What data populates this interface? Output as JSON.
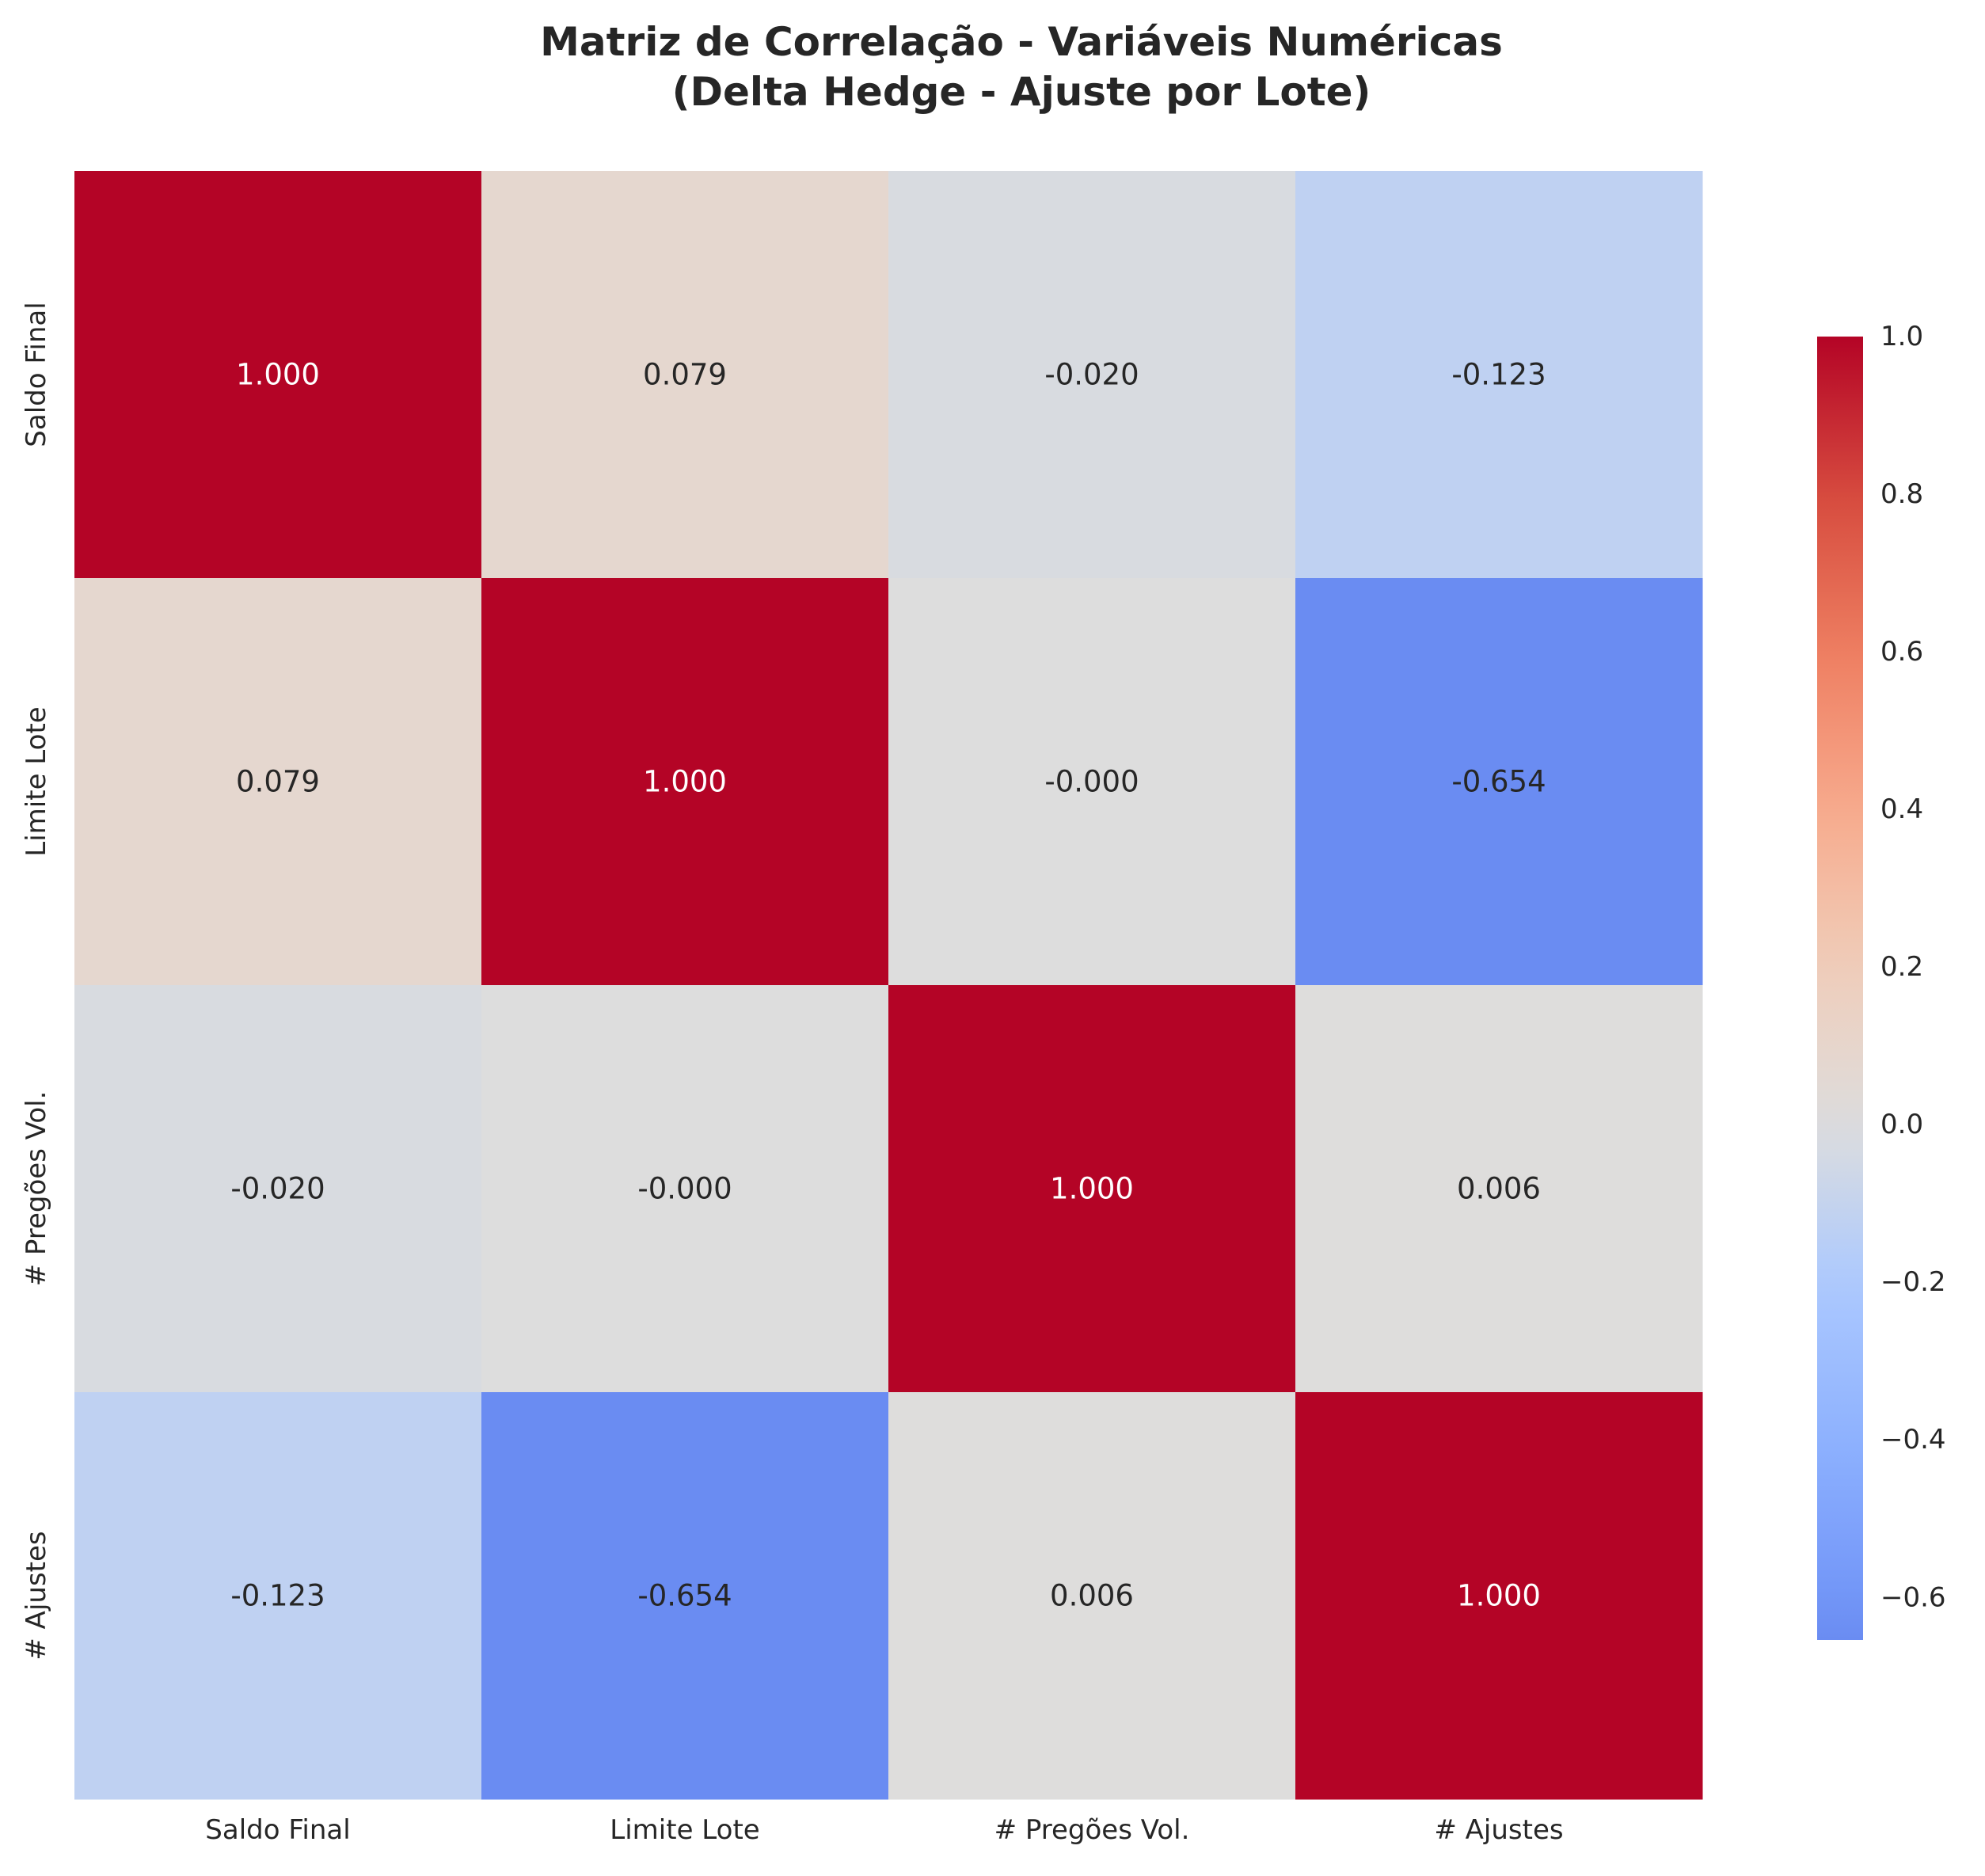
{
  "chart_data": {
    "type": "heatmap",
    "title": [
      "Matriz de Correlação - Variáveis Numéricas",
      "(Delta Hedge - Ajuste por Lote)"
    ],
    "x_labels": [
      "Saldo Final",
      "Limite Lote",
      "# Pregões Vol.",
      "# Ajustes"
    ],
    "y_labels": [
      "Saldo Final",
      "Limite Lote",
      "# Pregões Vol.",
      "# Ajustes"
    ],
    "values": [
      [
        1.0,
        0.079,
        -0.02,
        -0.123
      ],
      [
        0.079,
        1.0,
        -0.0,
        -0.654
      ],
      [
        -0.02,
        -0.0,
        1.0,
        0.006
      ],
      [
        -0.123,
        -0.654,
        0.006,
        1.0
      ]
    ],
    "annotations": [
      [
        "1.000",
        "0.079",
        "-0.020",
        "-0.123"
      ],
      [
        "0.079",
        "1.000",
        "-0.000",
        "-0.654"
      ],
      [
        "-0.020",
        "-0.000",
        "1.000",
        "0.006"
      ],
      [
        "-0.123",
        "-0.654",
        "0.006",
        "1.000"
      ]
    ],
    "colormap": "coolwarm",
    "center": 0,
    "vmin": -0.654,
    "vmax": 1.0,
    "colorbar_ticks": [
      1.0,
      0.8,
      0.6,
      0.4,
      0.2,
      0.0,
      -0.2,
      -0.4,
      -0.6
    ],
    "colorbar_tick_labels": [
      "1.0",
      "0.8",
      "0.6",
      "0.4",
      "0.2",
      "0.0",
      "−0.2",
      "−0.4",
      "−0.6"
    ],
    "legend": "colorbar-right",
    "grid": false
  }
}
